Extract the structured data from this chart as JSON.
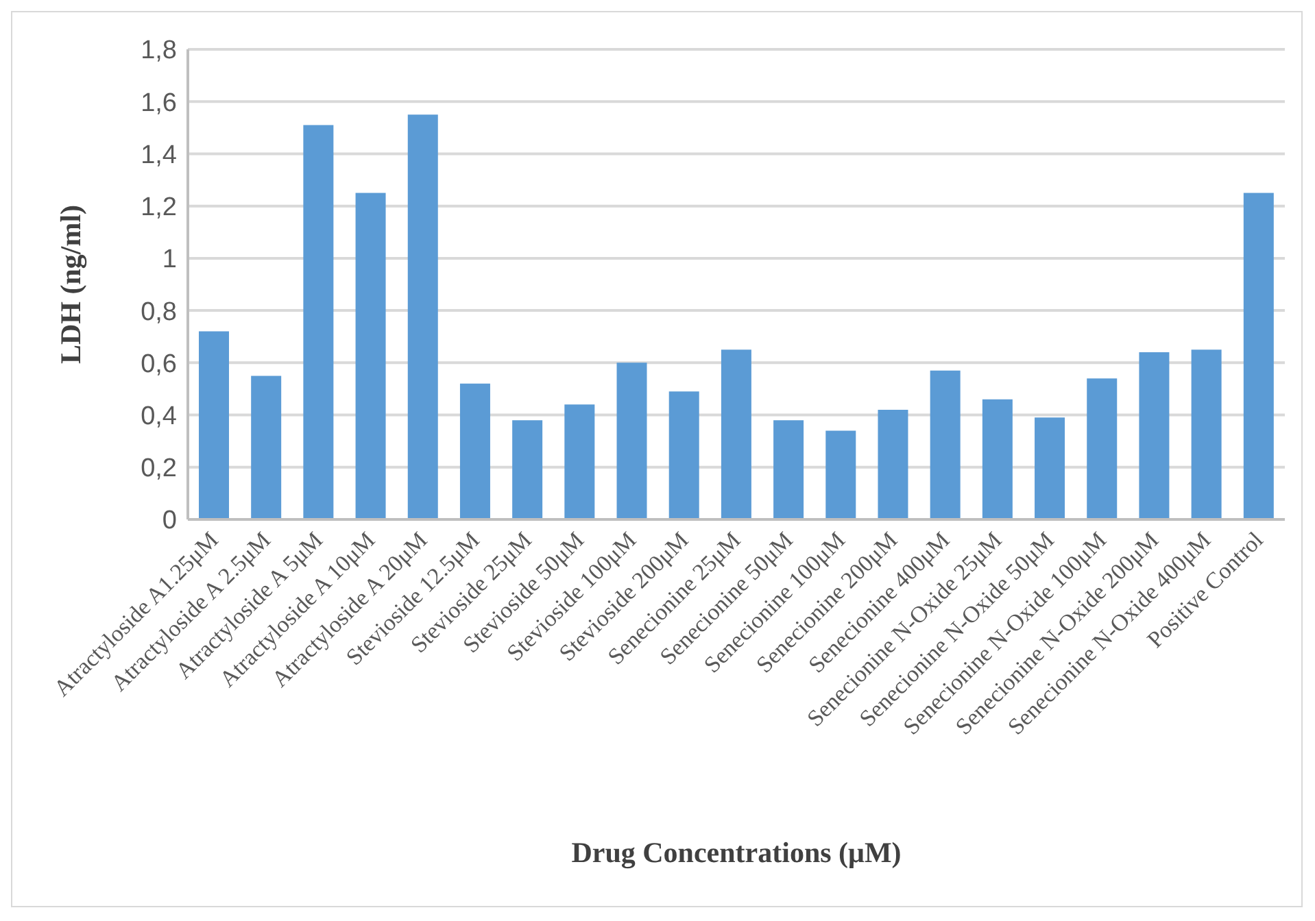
{
  "chart_data": {
    "type": "bar",
    "xlabel": "Drug Concentrations (μM)",
    "ylabel": "LDH (ng/ml)",
    "categories": [
      "Atractyloside A1.25μM",
      "Atractyloside A 2.5μM",
      "Atractyloside A 5μM",
      "Atractyloside A 10μM",
      "Atractyloside A 20μM",
      "Stevioside 12.5μM",
      "Stevioside 25μM",
      "Stevioside 50μM",
      "Stevioside 100μM",
      "Stevioside 200μM",
      "Senecionine 25μM",
      "Senecionine 50μM",
      "Senecionine 100μM",
      "Senecionine 200μM",
      "Senecionine 400μM",
      "Senecionine N-Oxide 25μM",
      "Senecionine N-Oxide 50μM",
      "Senecionine N-Oxide 100μM",
      "Senecionine N-Oxide 200μM",
      "Senecionine N-Oxide 400μM",
      "Positive Control"
    ],
    "values": [
      0.72,
      0.55,
      1.51,
      1.25,
      1.55,
      0.52,
      0.38,
      0.44,
      0.6,
      0.49,
      0.65,
      0.38,
      0.34,
      0.42,
      0.57,
      0.46,
      0.39,
      0.54,
      0.64,
      0.65,
      1.25
    ],
    "color": "#5b9bd5",
    "ylim": [
      0,
      1.8
    ],
    "yticks": [
      0,
      {
        "value": 0.2,
        "label": "0,2"
      },
      {
        "value": 0.4,
        "label": "0,4"
      },
      {
        "value": 0.6,
        "label": "0,6"
      },
      {
        "value": 0.8,
        "label": "0,8"
      },
      1,
      {
        "value": 1.2,
        "label": "1,2"
      },
      {
        "value": 1.4,
        "label": "1,4"
      },
      {
        "value": 1.6,
        "label": "1,6"
      },
      {
        "value": 1.8,
        "label": "1,8"
      }
    ],
    "grid": "y",
    "legend": false
  }
}
